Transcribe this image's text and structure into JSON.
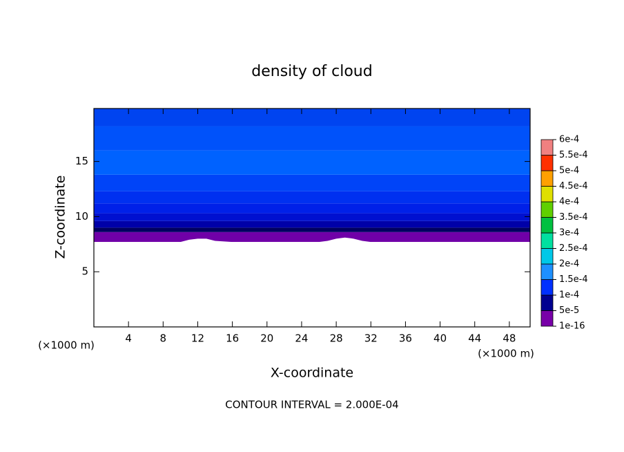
{
  "chart_data": {
    "type": "contour",
    "title": "density of cloud",
    "xlabel": "X-coordinate",
    "ylabel": "Z-coordinate",
    "x_unit_label": "(×1000 m)",
    "y_unit_label": "(×1000 m)",
    "footer": "CONTOUR INTERVAL = 2.000E-04",
    "xlim": [
      0,
      50.4
    ],
    "ylim": [
      0,
      19.8
    ],
    "xticks": [
      4,
      8,
      12,
      16,
      20,
      24,
      28,
      32,
      36,
      40,
      44,
      48
    ],
    "yticks": [
      5,
      10,
      15
    ],
    "layers": [
      {
        "z": [
          7.7,
          8.6
        ],
        "color": "#7000a8"
      },
      {
        "z": [
          8.6,
          9.0
        ],
        "color": "#000060"
      },
      {
        "z": [
          9.0,
          9.6
        ],
        "color": "#0000a8"
      },
      {
        "z": [
          9.6,
          10.3
        ],
        "color": "#0010d0"
      },
      {
        "z": [
          10.3,
          11.2
        ],
        "color": "#0020e8"
      },
      {
        "z": [
          11.2,
          12.3
        ],
        "color": "#0030f0"
      },
      {
        "z": [
          12.3,
          13.8
        ],
        "color": "#0044f8"
      },
      {
        "z": [
          13.8,
          16.0
        ],
        "color": "#0062ff"
      },
      {
        "z": [
          16.0,
          18.2
        ],
        "color": "#0052fa"
      },
      {
        "z": [
          18.2,
          19.8
        ],
        "color": "#0044f0"
      }
    ],
    "cloud_base": {
      "x": [
        0,
        2,
        4,
        6,
        8,
        10,
        11,
        12,
        13,
        14,
        16,
        20,
        24,
        26,
        27,
        28,
        29,
        30,
        31,
        32,
        36,
        40,
        44,
        46,
        48,
        50.4
      ],
      "z": [
        7.7,
        7.7,
        7.7,
        7.7,
        7.7,
        7.7,
        7.9,
        8.0,
        8.0,
        7.8,
        7.7,
        7.7,
        7.7,
        7.7,
        7.8,
        8.0,
        8.1,
        8.0,
        7.8,
        7.7,
        7.7,
        7.7,
        7.7,
        7.7,
        7.7,
        7.7
      ]
    },
    "colorbar": {
      "ticks": [
        {
          "value": 1e-16,
          "label": "1e-16"
        },
        {
          "value": 5e-05,
          "label": "5e-5"
        },
        {
          "value": 0.0001,
          "label": "1e-4"
        },
        {
          "value": 0.00015,
          "label": "1.5e-4"
        },
        {
          "value": 0.0002,
          "label": "2e-4"
        },
        {
          "value": 0.00025,
          "label": "2.5e-4"
        },
        {
          "value": 0.0003,
          "label": "3e-4"
        },
        {
          "value": 0.00035,
          "label": "3.5e-4"
        },
        {
          "value": 0.0004,
          "label": "4e-4"
        },
        {
          "value": 0.00045,
          "label": "4.5e-4"
        },
        {
          "value": 0.0005,
          "label": "5e-4"
        },
        {
          "value": 0.00055,
          "label": "5.5e-4"
        },
        {
          "value": 0.0006,
          "label": "6e-4"
        }
      ],
      "colors": [
        "#7800a8",
        "#000090",
        "#0030ff",
        "#1e90ff",
        "#00c8e8",
        "#00e0a0",
        "#00c040",
        "#60d000",
        "#e0e000",
        "#ffa000",
        "#ff3000",
        "#f08080"
      ]
    }
  }
}
